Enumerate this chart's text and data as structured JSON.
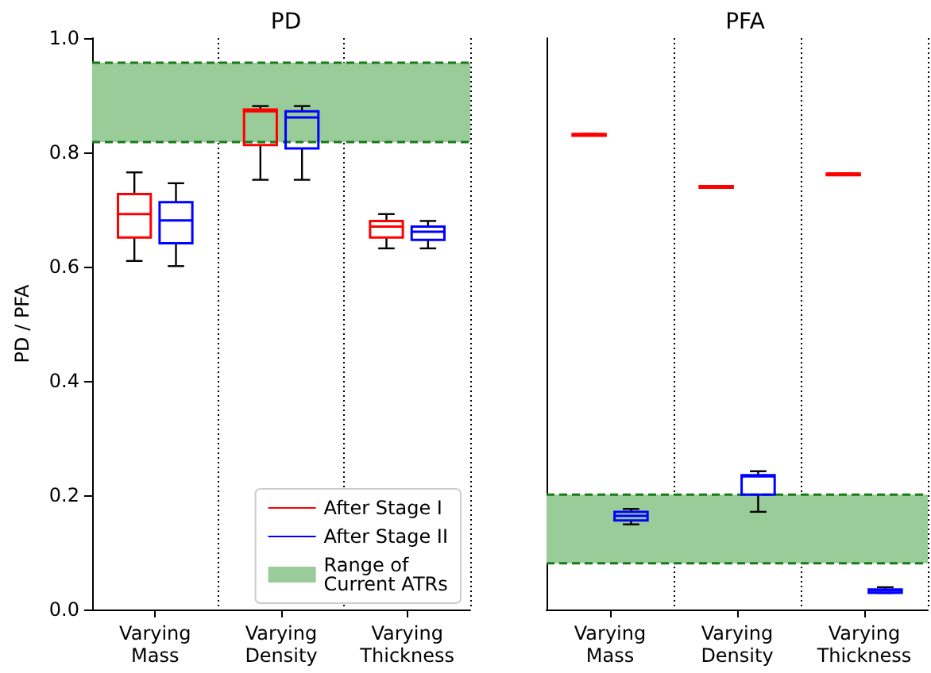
{
  "chart_data": [
    {
      "type": "box",
      "title": "PD",
      "ylabel": "PD / PFA",
      "categories": [
        "Varying\nMass",
        "Varying\nDensity",
        "Varying\nThickness"
      ],
      "ylim": [
        0,
        1
      ],
      "yticks": [
        {
          "value": 0,
          "label": "0.0"
        },
        {
          "value": 0.2,
          "label": "0.2"
        },
        {
          "value": 0.4,
          "label": "0.4"
        },
        {
          "value": 0.6,
          "label": "0.6"
        },
        {
          "value": 0.8,
          "label": "0.8"
        },
        {
          "value": 1,
          "label": "1.0"
        }
      ],
      "grid": "x",
      "legend": "bottom right",
      "series": [
        {
          "name": "After Stage I",
          "color": "#ff0000",
          "boxes": [
            {
              "low": 0.61,
              "q1": 0.651,
              "median": 0.692,
              "q3": 0.727,
              "high": 0.765
            },
            {
              "low": 0.752,
              "q1": 0.813,
              "median": 0.872,
              "q3": 0.875,
              "high": 0.881
            },
            {
              "low": 0.632,
              "q1": 0.651,
              "median": 0.67,
              "q3": 0.68,
              "high": 0.692
            }
          ]
        },
        {
          "name": "After Stage II",
          "color": "#0000ff",
          "boxes": [
            {
              "low": 0.601,
              "q1": 0.641,
              "median": 0.681,
              "q3": 0.713,
              "high": 0.746
            },
            {
              "low": 0.752,
              "q1": 0.807,
              "median": 0.861,
              "q3": 0.872,
              "high": 0.881
            },
            {
              "low": 0.632,
              "q1": 0.647,
              "median": 0.661,
              "q3": 0.67,
              "high": 0.68
            }
          ]
        }
      ],
      "bands": [
        {
          "axis": "y",
          "from": 0.818,
          "to": 0.957,
          "label": "Range of\nCurrent ATRs",
          "color": "#99cc99"
        }
      ],
      "ref_lines": [
        {
          "axis": "y",
          "value": 0.818,
          "color": "#1a7a1a",
          "line_style": "dashed"
        },
        {
          "axis": "y",
          "value": 0.957,
          "color": "#1a7a1a",
          "line_style": "dashed"
        }
      ]
    },
    {
      "type": "box",
      "title": "PFA",
      "categories": [
        "Varying\nMass",
        "Varying\nDensity",
        "Varying\nThickness"
      ],
      "ylim": [
        0,
        1
      ],
      "tick_labels": "x",
      "grid": "x",
      "series": [
        {
          "color": "#ff0000",
          "boxes": [
            {
              "low": 0.832,
              "q1": 0.832,
              "median": 0.832,
              "q3": 0.832,
              "high": 0.832
            },
            {
              "low": 0.741,
              "q1": 0.741,
              "median": 0.741,
              "q3": 0.741,
              "high": 0.741
            },
            {
              "low": 0.763,
              "q1": 0.763,
              "median": 0.763,
              "q3": 0.763,
              "high": 0.763
            }
          ]
        },
        {
          "color": "#0000ff",
          "boxes": [
            {
              "low": 0.149,
              "q1": 0.156,
              "median": 0.164,
              "q3": 0.171,
              "high": 0.176
            },
            {
              "low": 0.171,
              "q1": 0.201,
              "median": 0.233,
              "q3": 0.235,
              "high": 0.242
            },
            {
              "low": 0.029,
              "q1": 0.029,
              "median": 0.033,
              "q3": 0.035,
              "high": 0.039
            }
          ]
        }
      ],
      "bands": [
        {
          "axis": "y",
          "from": 0.081,
          "to": 0.201,
          "color": "#99cc99"
        }
      ],
      "ref_lines": [
        {
          "axis": "y",
          "value": 0.081,
          "color": "#1a7a1a",
          "line_style": "dashed"
        },
        {
          "axis": "y",
          "value": 0.201,
          "color": "#1a7a1a",
          "line_style": "dashed"
        }
      ]
    }
  ]
}
